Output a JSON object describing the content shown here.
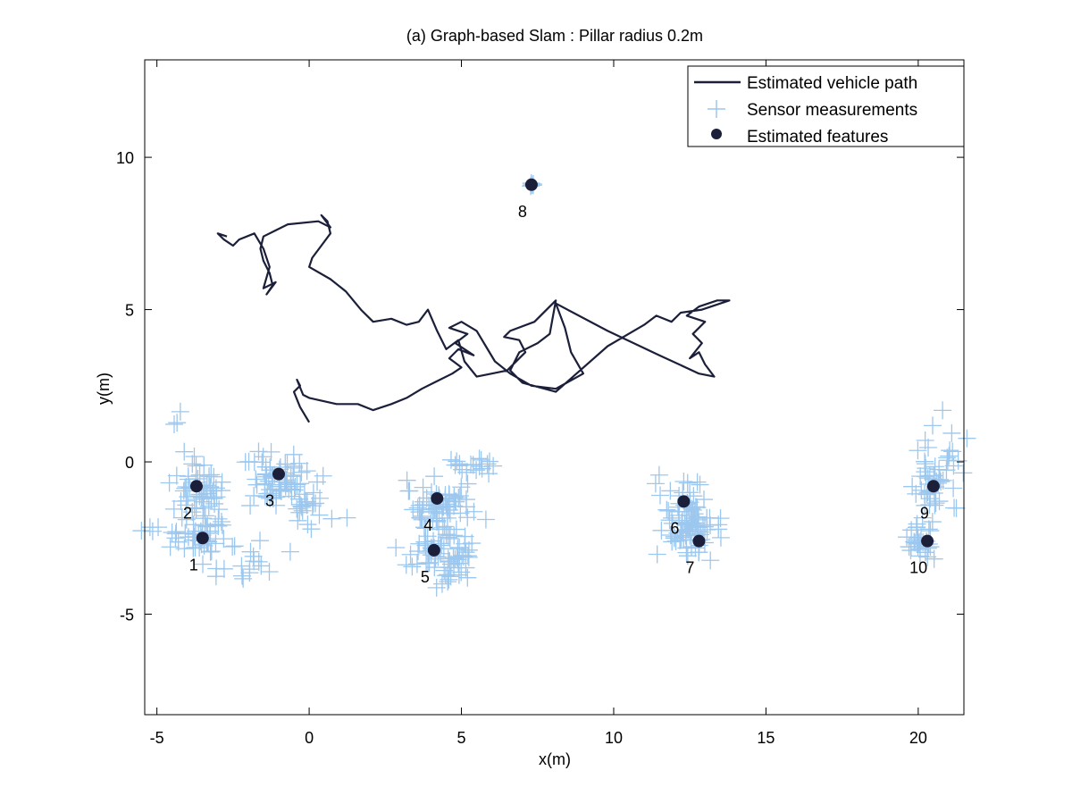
{
  "chart_data": {
    "type": "scatter",
    "title": "(a) Graph-based Slam : Pillar radius 0.2m",
    "xlabel": "x(m)",
    "ylabel": "y(m)",
    "xlim": [
      -5.4,
      21.5
    ],
    "ylim": [
      -8.3,
      13.2
    ],
    "xticks": [
      -5,
      0,
      5,
      10,
      15,
      20
    ],
    "yticks": [
      -5,
      0,
      5,
      10
    ],
    "grid": false,
    "legend": {
      "placement": "top-right",
      "entries": [
        "Estimated vehicle path",
        "Sensor measurements",
        "Estimated features"
      ]
    },
    "colors": {
      "path": "#1b1f3a",
      "measurements": "#9cc7ee",
      "features": "#1b1f3a"
    },
    "series": [
      {
        "name": "Estimated vehicle path",
        "kind": "line",
        "points": [
          [
            0.0,
            1.3
          ],
          [
            -0.3,
            1.8
          ],
          [
            -0.5,
            2.3
          ],
          [
            -0.3,
            2.5
          ],
          [
            -0.4,
            2.7
          ],
          [
            -0.2,
            2.2
          ],
          [
            0.0,
            2.1
          ],
          [
            0.9,
            1.9
          ],
          [
            1.6,
            1.9
          ],
          [
            2.1,
            1.7
          ],
          [
            2.7,
            1.9
          ],
          [
            3.2,
            2.1
          ],
          [
            3.7,
            2.4
          ],
          [
            4.1,
            2.6
          ],
          [
            4.7,
            2.9
          ],
          [
            5.0,
            3.1
          ],
          [
            4.6,
            3.4
          ],
          [
            4.9,
            3.7
          ],
          [
            5.4,
            3.5
          ],
          [
            4.8,
            3.9
          ],
          [
            5.2,
            4.2
          ],
          [
            4.6,
            4.4
          ],
          [
            5.0,
            4.6
          ],
          [
            5.5,
            4.3
          ],
          [
            5.8,
            3.8
          ],
          [
            6.1,
            3.3
          ],
          [
            6.6,
            2.9
          ],
          [
            7.3,
            2.5
          ],
          [
            8.1,
            2.4
          ],
          [
            9.0,
            2.9
          ],
          [
            8.6,
            3.6
          ],
          [
            8.4,
            4.4
          ],
          [
            8.1,
            5.2
          ],
          [
            9.8,
            4.3
          ],
          [
            11.5,
            3.5
          ],
          [
            12.8,
            2.9
          ],
          [
            13.3,
            2.8
          ],
          [
            13.0,
            3.2
          ],
          [
            12.8,
            3.6
          ],
          [
            12.5,
            3.4
          ],
          [
            12.9,
            3.9
          ],
          [
            12.6,
            4.2
          ],
          [
            13.0,
            4.6
          ],
          [
            12.4,
            4.8
          ],
          [
            12.8,
            5.1
          ],
          [
            13.4,
            5.3
          ],
          [
            13.8,
            5.3
          ],
          [
            12.9,
            5.0
          ],
          [
            12.2,
            4.9
          ],
          [
            11.9,
            4.6
          ],
          [
            11.4,
            4.8
          ],
          [
            11.0,
            4.5
          ],
          [
            9.8,
            3.8
          ],
          [
            8.1,
            2.3
          ],
          [
            7.0,
            2.6
          ],
          [
            6.6,
            3.0
          ],
          [
            6.9,
            3.6
          ],
          [
            7.5,
            3.9
          ],
          [
            7.9,
            4.2
          ],
          [
            8.1,
            5.3
          ],
          [
            7.4,
            4.6
          ],
          [
            6.6,
            4.3
          ],
          [
            6.4,
            4.1
          ],
          [
            6.9,
            4.0
          ],
          [
            7.1,
            3.6
          ],
          [
            6.5,
            3.0
          ],
          [
            6.0,
            2.9
          ],
          [
            5.5,
            2.8
          ],
          [
            5.1,
            3.3
          ],
          [
            4.9,
            4.0
          ],
          [
            4.5,
            3.7
          ],
          [
            4.2,
            4.3
          ],
          [
            3.9,
            5.0
          ],
          [
            3.6,
            4.6
          ],
          [
            3.2,
            4.5
          ],
          [
            2.7,
            4.7
          ],
          [
            2.1,
            4.6
          ],
          [
            1.7,
            5.0
          ],
          [
            1.2,
            5.6
          ],
          [
            0.7,
            6.0
          ],
          [
            0.0,
            6.4
          ],
          [
            0.1,
            6.7
          ],
          [
            0.4,
            7.1
          ],
          [
            0.7,
            7.5
          ],
          [
            0.6,
            7.9
          ],
          [
            0.4,
            8.1
          ],
          [
            0.7,
            7.7
          ],
          [
            0.3,
            7.9
          ],
          [
            -0.7,
            7.8
          ],
          [
            -1.1,
            7.6
          ],
          [
            -1.5,
            7.4
          ],
          [
            -1.6,
            7.0
          ],
          [
            -1.5,
            6.6
          ],
          [
            -1.3,
            6.2
          ],
          [
            -1.2,
            5.8
          ],
          [
            -1.4,
            5.5
          ],
          [
            -1.1,
            5.9
          ],
          [
            -1.5,
            5.7
          ],
          [
            -1.3,
            6.4
          ],
          [
            -1.5,
            7.0
          ],
          [
            -1.8,
            7.5
          ],
          [
            -2.3,
            7.3
          ],
          [
            -2.5,
            7.1
          ],
          [
            -2.8,
            7.3
          ],
          [
            -3.0,
            7.5
          ],
          [
            -2.7,
            7.4
          ]
        ]
      },
      {
        "name": "Sensor measurements",
        "kind": "plus-cloud",
        "clusters": [
          {
            "feature": "1",
            "cx": -3.7,
            "cy": -2.4,
            "n": 45,
            "sx": 0.5,
            "sy": 0.35
          },
          {
            "feature": "1 trail",
            "cx": -2.3,
            "cy": -3.3,
            "n": 22,
            "sx": 0.8,
            "sy": 0.4
          },
          {
            "feature": "2",
            "cx": -3.7,
            "cy": -0.9,
            "n": 55,
            "sx": 0.45,
            "sy": 0.45
          },
          {
            "feature": "3",
            "cx": -0.9,
            "cy": -0.6,
            "n": 70,
            "sx": 0.55,
            "sy": 0.5
          },
          {
            "feature": "3 trail",
            "cx": 0.1,
            "cy": -1.7,
            "n": 18,
            "sx": 0.5,
            "sy": 0.4
          },
          {
            "feature": "4",
            "cx": 4.3,
            "cy": -1.4,
            "n": 70,
            "sx": 0.55,
            "sy": 0.45
          },
          {
            "feature": "4 trail",
            "cx": 5.5,
            "cy": -0.2,
            "n": 18,
            "sx": 0.5,
            "sy": 0.2
          },
          {
            "feature": "5",
            "cx": 4.3,
            "cy": -2.9,
            "n": 70,
            "sx": 0.55,
            "sy": 0.5
          },
          {
            "feature": "6",
            "cx": 12.4,
            "cy": -1.5,
            "n": 55,
            "sx": 0.45,
            "sy": 0.5
          },
          {
            "feature": "7",
            "cx": 12.6,
            "cy": -2.5,
            "n": 45,
            "sx": 0.45,
            "sy": 0.35
          },
          {
            "feature": "8",
            "cx": 7.3,
            "cy": 9.1,
            "n": 5,
            "sx": 0.05,
            "sy": 0.05
          },
          {
            "feature": "9",
            "cx": 20.4,
            "cy": -0.9,
            "n": 40,
            "sx": 0.4,
            "sy": 0.5
          },
          {
            "feature": "9 trail",
            "cx": 21.0,
            "cy": 0.5,
            "n": 15,
            "sx": 0.3,
            "sy": 0.6
          },
          {
            "feature": "10",
            "cx": 20.1,
            "cy": -2.7,
            "n": 30,
            "sx": 0.3,
            "sy": 0.25
          },
          {
            "feature": "outliers",
            "cx": -4.4,
            "cy": 1.4,
            "n": 3,
            "sx": 0.15,
            "sy": 0.1
          },
          {
            "feature": "outliers",
            "cx": -5.2,
            "cy": -2.2,
            "n": 4,
            "sx": 0.2,
            "sy": 0.05
          }
        ]
      },
      {
        "name": "Estimated features",
        "kind": "marker",
        "points": [
          {
            "label": "1",
            "x": -3.5,
            "y": -2.5
          },
          {
            "label": "2",
            "x": -3.7,
            "y": -0.8
          },
          {
            "label": "3",
            "x": -1.0,
            "y": -0.4
          },
          {
            "label": "4",
            "x": 4.2,
            "y": -1.2
          },
          {
            "label": "5",
            "x": 4.1,
            "y": -2.9
          },
          {
            "label": "6",
            "x": 12.3,
            "y": -1.3
          },
          {
            "label": "7",
            "x": 12.8,
            "y": -2.6
          },
          {
            "label": "8",
            "x": 7.3,
            "y": 9.1
          },
          {
            "label": "9",
            "x": 20.5,
            "y": -0.8
          },
          {
            "label": "10",
            "x": 20.3,
            "y": -2.6
          }
        ]
      }
    ]
  }
}
